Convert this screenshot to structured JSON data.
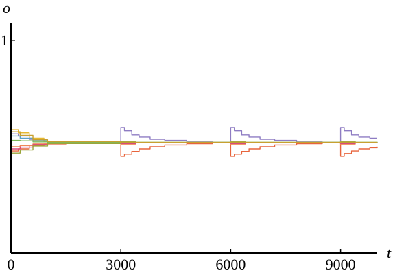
{
  "chart_data": {
    "type": "line",
    "xlabel": "t",
    "ylabel": "o",
    "xlim": [
      0,
      10000
    ],
    "ylim": [
      0,
      1.08
    ],
    "x_ticks": [
      {
        "value": 0,
        "label": "0"
      },
      {
        "value": 3000,
        "label": "3000"
      },
      {
        "value": 6000,
        "label": "6000"
      },
      {
        "value": 9000,
        "label": "9000"
      }
    ],
    "y_ticks": [
      {
        "value": 1,
        "label": "1"
      }
    ],
    "grid": false,
    "legend": "none",
    "series": [
      {
        "color": "#8e7cc3",
        "points": [
          [
            0,
            0.56
          ],
          [
            200,
            0.55
          ],
          [
            500,
            0.535
          ],
          [
            900,
            0.525
          ],
          [
            1500,
            0.52
          ],
          [
            2990,
            0.52
          ],
          [
            3000,
            0.59
          ],
          [
            3100,
            0.575
          ],
          [
            3300,
            0.555
          ],
          [
            3500,
            0.545
          ],
          [
            3800,
            0.535
          ],
          [
            4200,
            0.53
          ],
          [
            4800,
            0.523
          ],
          [
            5500,
            0.521
          ],
          [
            5990,
            0.52
          ],
          [
            6000,
            0.59
          ],
          [
            6100,
            0.575
          ],
          [
            6300,
            0.555
          ],
          [
            6500,
            0.545
          ],
          [
            6800,
            0.535
          ],
          [
            7200,
            0.53
          ],
          [
            7800,
            0.523
          ],
          [
            8500,
            0.521
          ],
          [
            8990,
            0.52
          ],
          [
            9000,
            0.59
          ],
          [
            9100,
            0.575
          ],
          [
            9300,
            0.555
          ],
          [
            9500,
            0.545
          ],
          [
            9800,
            0.54
          ],
          [
            10000,
            0.54
          ]
        ]
      },
      {
        "color": "#e8643c",
        "points": [
          [
            0,
            0.48
          ],
          [
            200,
            0.49
          ],
          [
            500,
            0.505
          ],
          [
            900,
            0.513
          ],
          [
            1500,
            0.518
          ],
          [
            2990,
            0.52
          ],
          [
            3000,
            0.455
          ],
          [
            3100,
            0.465
          ],
          [
            3300,
            0.478
          ],
          [
            3500,
            0.49
          ],
          [
            3800,
            0.5
          ],
          [
            4200,
            0.508
          ],
          [
            4800,
            0.514
          ],
          [
            5500,
            0.518
          ],
          [
            5990,
            0.52
          ],
          [
            6000,
            0.455
          ],
          [
            6100,
            0.465
          ],
          [
            6300,
            0.478
          ],
          [
            6500,
            0.49
          ],
          [
            6800,
            0.5
          ],
          [
            7200,
            0.508
          ],
          [
            7800,
            0.514
          ],
          [
            8500,
            0.518
          ],
          [
            8990,
            0.52
          ],
          [
            9000,
            0.455
          ],
          [
            9100,
            0.468
          ],
          [
            9300,
            0.48
          ],
          [
            9500,
            0.49
          ],
          [
            9800,
            0.495
          ],
          [
            10000,
            0.5
          ]
        ]
      },
      {
        "color": "#e6b830",
        "points": [
          [
            0,
            0.58
          ],
          [
            200,
            0.565
          ],
          [
            500,
            0.54
          ],
          [
            900,
            0.526
          ],
          [
            1500,
            0.521
          ],
          [
            2990,
            0.52
          ],
          [
            3000,
            0.525
          ],
          [
            3400,
            0.521
          ],
          [
            5990,
            0.52
          ],
          [
            6000,
            0.525
          ],
          [
            6400,
            0.521
          ],
          [
            8990,
            0.52
          ],
          [
            9000,
            0.525
          ],
          [
            9400,
            0.521
          ],
          [
            10000,
            0.52
          ]
        ]
      },
      {
        "color": "#5aa0c8",
        "points": [
          [
            0,
            0.55
          ],
          [
            250,
            0.54
          ],
          [
            600,
            0.528
          ],
          [
            1000,
            0.522
          ],
          [
            2990,
            0.52
          ],
          [
            3000,
            0.518
          ],
          [
            3400,
            0.52
          ],
          [
            5990,
            0.52
          ],
          [
            6000,
            0.518
          ],
          [
            6400,
            0.52
          ],
          [
            8990,
            0.52
          ],
          [
            9000,
            0.518
          ],
          [
            9400,
            0.52
          ],
          [
            10000,
            0.52
          ]
        ]
      },
      {
        "color": "#f0885a",
        "points": [
          [
            0,
            0.5
          ],
          [
            250,
            0.505
          ],
          [
            600,
            0.513
          ],
          [
            1000,
            0.518
          ],
          [
            2990,
            0.52
          ],
          [
            3000,
            0.512
          ],
          [
            3400,
            0.518
          ],
          [
            5990,
            0.52
          ],
          [
            6000,
            0.512
          ],
          [
            6400,
            0.518
          ],
          [
            8990,
            0.52
          ],
          [
            9000,
            0.512
          ],
          [
            9400,
            0.518
          ],
          [
            10000,
            0.52
          ]
        ]
      },
      {
        "color": "#d94a7a",
        "points": [
          [
            0,
            0.49
          ],
          [
            250,
            0.498
          ],
          [
            600,
            0.51
          ],
          [
            1000,
            0.517
          ],
          [
            2990,
            0.52
          ],
          [
            3000,
            0.515
          ],
          [
            3400,
            0.519
          ],
          [
            5990,
            0.52
          ],
          [
            6000,
            0.515
          ],
          [
            6400,
            0.519
          ],
          [
            8990,
            0.52
          ],
          [
            9000,
            0.515
          ],
          [
            9400,
            0.519
          ],
          [
            10000,
            0.52
          ]
        ]
      },
      {
        "color": "#7cb85a",
        "points": [
          [
            0,
            0.53
          ],
          [
            250,
            0.528
          ],
          [
            600,
            0.523
          ],
          [
            1000,
            0.521
          ],
          [
            2990,
            0.52
          ],
          [
            3000,
            0.524
          ],
          [
            3400,
            0.521
          ],
          [
            5990,
            0.52
          ],
          [
            6000,
            0.524
          ],
          [
            6400,
            0.521
          ],
          [
            8990,
            0.52
          ],
          [
            9000,
            0.524
          ],
          [
            9400,
            0.521
          ],
          [
            10000,
            0.52
          ]
        ]
      },
      {
        "color": "#9aa53a",
        "points": [
          [
            0,
            0.47
          ],
          [
            250,
            0.485
          ],
          [
            600,
            0.503
          ],
          [
            1000,
            0.515
          ],
          [
            2990,
            0.52
          ],
          [
            3000,
            0.52
          ],
          [
            10000,
            0.52
          ]
        ]
      },
      {
        "color": "#c8a030",
        "points": [
          [
            0,
            0.57
          ],
          [
            250,
            0.553
          ],
          [
            600,
            0.533
          ],
          [
            1000,
            0.524
          ],
          [
            2990,
            0.52
          ],
          [
            3000,
            0.522
          ],
          [
            3400,
            0.52
          ],
          [
            5990,
            0.52
          ],
          [
            6000,
            0.522
          ],
          [
            6400,
            0.52
          ],
          [
            8990,
            0.52
          ],
          [
            9000,
            0.522
          ],
          [
            9400,
            0.52
          ],
          [
            10000,
            0.52
          ]
        ]
      }
    ]
  }
}
